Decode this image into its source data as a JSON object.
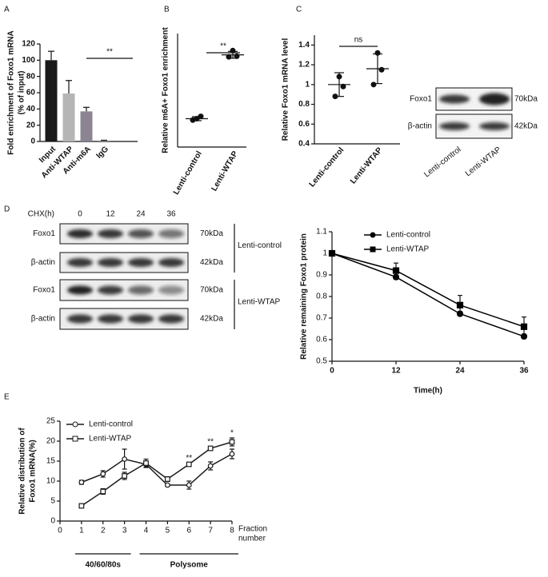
{
  "chart_data": [
    {
      "type": "bar",
      "panel": "A",
      "y_label": [
        "Fold enrichment of Foxo1 mRNA",
        "(% of input)"
      ],
      "categories": [
        "Input",
        "Anti-WTAP",
        "Anti-m6A",
        "IgG"
      ],
      "values": [
        100,
        59,
        37,
        1
      ],
      "errors": [
        11,
        16,
        5,
        0.5
      ],
      "colors": [
        "#1a1a1a",
        "#b5b5b5",
        "#8c8591",
        "#8c8591"
      ],
      "ylim": [
        0,
        120
      ],
      "yticks": [
        0,
        20,
        40,
        60,
        80,
        100,
        120
      ],
      "annotation": "**"
    },
    {
      "type": "dot",
      "panel": "B",
      "y_label": [
        "Relative m6A+ Foxo1 enrichment"
      ],
      "categories": [
        "Lenti-control",
        "Lenti-WTAP"
      ],
      "points": [
        [
          1.0,
          1.08,
          0.95
        ],
        [
          3.4,
          3.2,
          3.18
        ]
      ],
      "means": [
        1.0,
        3.25
      ],
      "errors": [
        0.07,
        0.12
      ],
      "ylim": [
        0,
        4
      ],
      "annotation": "**"
    },
    {
      "type": "dot",
      "panel": "C",
      "y_label": [
        "Relative Foxo1 mRNA level"
      ],
      "categories": [
        "Lenti-control",
        "Lenti-WTAP"
      ],
      "points": [
        [
          1.08,
          0.98,
          0.88
        ],
        [
          1.32,
          1.15,
          1.0
        ]
      ],
      "means": [
        1.0,
        1.16
      ],
      "errors": [
        0.12,
        0.15
      ],
      "ylim": [
        0.4,
        1.5
      ],
      "yticks": [
        0.4,
        0.6,
        0.8,
        1.0,
        1.2,
        1.4
      ],
      "annotation": "ns"
    },
    {
      "type": "line",
      "x_label": [
        "Time(h)"
      ],
      "y_label": [
        "Relative remaining Foxo1 protein"
      ],
      "x": [
        0,
        12,
        24,
        36
      ],
      "xlim": [
        0,
        36
      ],
      "xticks": [
        0,
        12,
        24,
        36
      ],
      "ylim": [
        0.5,
        1.1
      ],
      "yticks": [
        0.5,
        0.6,
        0.7,
        0.8,
        0.9,
        1.0,
        1.1
      ],
      "legend": "upper right",
      "series": [
        {
          "name": "Lenti-control",
          "color": "#000000",
          "marker": "circle",
          "marker_fill": "#000000",
          "values": [
            1.0,
            0.89,
            0.72,
            0.615
          ],
          "errors": [
            0,
            0.01,
            0.01,
            0.01
          ]
        },
        {
          "name": "Lenti-WTAP",
          "color": "#000000",
          "marker": "square",
          "marker_fill": "#000000",
          "values": [
            1.0,
            0.92,
            0.76,
            0.66
          ],
          "errors": [
            0,
            0.035,
            0.045,
            0.045
          ]
        }
      ]
    },
    {
      "type": "line",
      "panel": "E",
      "x_label": [
        "Fraction",
        "number"
      ],
      "y_label": [
        "Relative distribution of",
        "Foxo1 mRNA(%)"
      ],
      "x": [
        1,
        2,
        3,
        4,
        5,
        6,
        7,
        8
      ],
      "xlim": [
        0,
        8
      ],
      "xticks": [
        0,
        1,
        2,
        3,
        4,
        5,
        6,
        7,
        8
      ],
      "ylim": [
        0,
        25
      ],
      "yticks": [
        0,
        5,
        10,
        15,
        20,
        25
      ],
      "legend": "upper left",
      "series": [
        {
          "name": "Lenti-control",
          "color": "#1a1a1a",
          "marker": "circle",
          "marker_fill": "#ffffff",
          "values": [
            9.7,
            11.8,
            15.5,
            14.2,
            9.0,
            9.0,
            13.8,
            16.8
          ],
          "errors": [
            0.5,
            0.8,
            2.5,
            0.8,
            0.3,
            1.0,
            1.0,
            1.2
          ]
        },
        {
          "name": "Lenti-WTAP",
          "color": "#1a1a1a",
          "marker": "square",
          "marker_fill": "#ffffff",
          "values": [
            3.8,
            7.4,
            11.3,
            14.5,
            10.5,
            14.2,
            18.2,
            19.8
          ],
          "errors": [
            0.2,
            0.7,
            0.9,
            1.0,
            0.6,
            0.3,
            0.4,
            1.0
          ]
        }
      ],
      "annotations": [
        {
          "x": 6,
          "label": "**"
        },
        {
          "x": 7,
          "label": "**"
        },
        {
          "x": 8,
          "label": "*"
        }
      ],
      "groups": [
        {
          "label": "40/60/80s",
          "from": 1,
          "to": 3
        },
        {
          "label": "Polysome",
          "from": 4,
          "to": 8
        }
      ]
    }
  ],
  "blots": [
    {
      "rows": [
        {
          "protein": "Foxo1",
          "size": "70kDa"
        },
        {
          "protein": "β-actin",
          "size": "42kDa"
        }
      ],
      "lanes": [
        "Lenti-control",
        "Lenti-WTAP"
      ]
    },
    {
      "panel": "D",
      "header": "CHX(h)",
      "lanes": [
        0,
        12,
        24,
        36
      ],
      "rows": [
        {
          "protein": "Foxo1",
          "size": "70kDa"
        },
        {
          "protein": "β-actin",
          "size": "42kDa"
        },
        {
          "protein": "Foxo1",
          "size": "70kDa"
        },
        {
          "protein": "β-actin",
          "size": "42kDa"
        }
      ],
      "groups": [
        "Lenti-control",
        "Lenti-WTAP"
      ]
    }
  ]
}
